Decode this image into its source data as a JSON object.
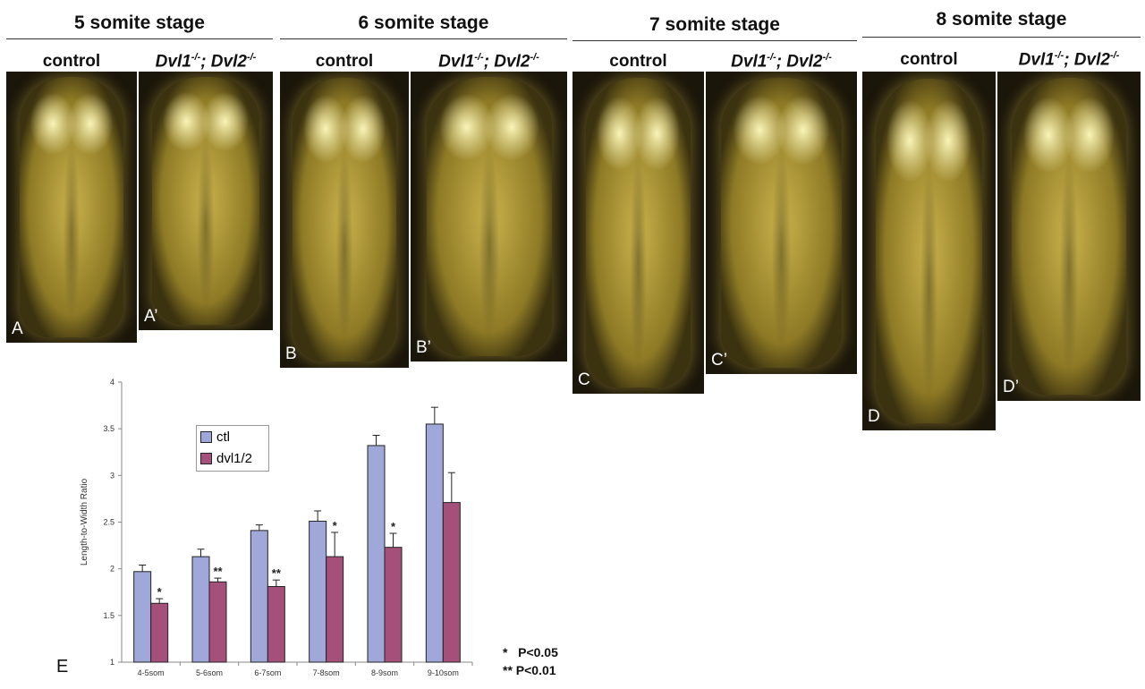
{
  "stages": [
    "5 somite stage",
    "6 somite stage",
    "7 somite stage",
    "8 somite stage"
  ],
  "control_label": "control",
  "mutant_label": {
    "a": "Dvl1",
    "a_sup": "-/-",
    "sep": "; ",
    "b": "Dvl2",
    "b_sup": "-/-"
  },
  "panels": [
    "A",
    "A’",
    "B",
    "B’",
    "C",
    "C’",
    "D",
    "D’"
  ],
  "figure_label": "E",
  "significance": [
    "*   P<0.05",
    "** P<0.01"
  ],
  "chart_data": {
    "type": "bar",
    "ylabel": "Length-to-Width Ratio",
    "xlabel": "",
    "ylim": [
      1,
      4
    ],
    "yticks": [
      "1",
      "1.5",
      "2",
      "2.5",
      "3",
      "3.5",
      "4"
    ],
    "categories": [
      "4-5som",
      "5-6som",
      "6-7som",
      "7-8som",
      "8-9som",
      "9-10som"
    ],
    "series": [
      {
        "name": "ctl",
        "color": "#9fa8d8",
        "values": [
          1.97,
          2.13,
          2.41,
          2.51,
          3.32,
          3.55
        ],
        "errors": [
          0.07,
          0.08,
          0.06,
          0.11,
          0.11,
          0.18
        ]
      },
      {
        "name": "dvl1/2",
        "color": "#a4507a",
        "values": [
          1.63,
          1.86,
          1.81,
          2.13,
          2.23,
          2.71
        ],
        "errors": [
          0.05,
          0.04,
          0.07,
          0.26,
          0.15,
          0.32
        ],
        "annotations": [
          "*",
          "**",
          "**",
          "*",
          "*",
          ""
        ]
      }
    ],
    "legend": "upper-left inside"
  }
}
